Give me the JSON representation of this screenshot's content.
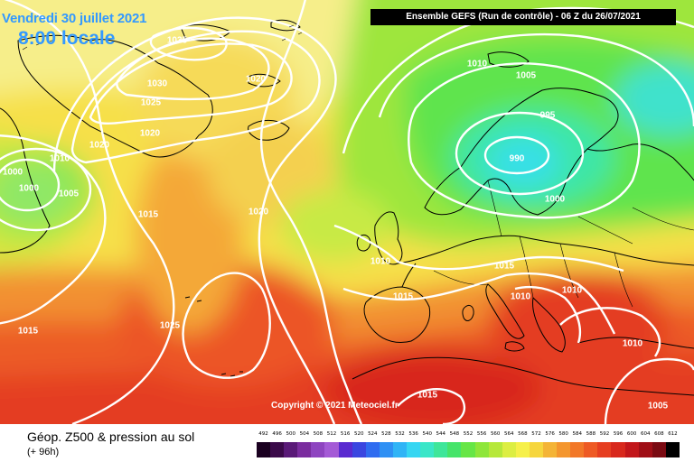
{
  "header": {
    "date": "Vendredi 30 juillet 2021",
    "time": "8:00 locale",
    "run": "Ensemble GEFS  (Run de contrôle)  -  06 Z du 26/07/2021"
  },
  "copyright": "Copyright © 2021 Meteociel.fr",
  "parameter": {
    "title": "Géop. Z500 & pression au sol",
    "subtitle": "(+ 96h)"
  },
  "isobar_labels": [
    "1035",
    "1030",
    "1025",
    "1020",
    "1020",
    "1020",
    "1010",
    "1000",
    "1000",
    "1005",
    "1015",
    "1020",
    "1025",
    "1015",
    "1010",
    "1005",
    "995",
    "990",
    "1000",
    "1010",
    "1015",
    "1015",
    "1010",
    "1010",
    "1010",
    "1015",
    "1005"
  ],
  "legend": {
    "labels": [
      "492",
      "496",
      "500",
      "504",
      "508",
      "512",
      "516",
      "520",
      "524",
      "528",
      "532",
      "536",
      "540",
      "544",
      "548",
      "552",
      "556",
      "560",
      "564",
      "568",
      "572",
      "576",
      "580",
      "584",
      "588",
      "592",
      "596",
      "600",
      "604",
      "608",
      "612"
    ],
    "colors": [
      "#1a0020",
      "#3b0a4a",
      "#5a1a78",
      "#7a2c9e",
      "#8e44c0",
      "#a45ad6",
      "#5a2ad0",
      "#3a46e0",
      "#2f6cf0",
      "#2f90f4",
      "#30b4f6",
      "#36d6f2",
      "#3ae6c8",
      "#3ee69a",
      "#46e46a",
      "#66e646",
      "#8ee63a",
      "#b6e83a",
      "#dcee42",
      "#f6f04a",
      "#f6d63e",
      "#f4b436",
      "#f4962e",
      "#f27828",
      "#ee5a24",
      "#e63e20",
      "#d8281c",
      "#c2161a",
      "#a00e16",
      "#7a0a12",
      "#000000"
    ]
  },
  "colors": {
    "title_blue": "#3399ff",
    "isobar": "#ffffff",
    "coast": "#000000"
  }
}
